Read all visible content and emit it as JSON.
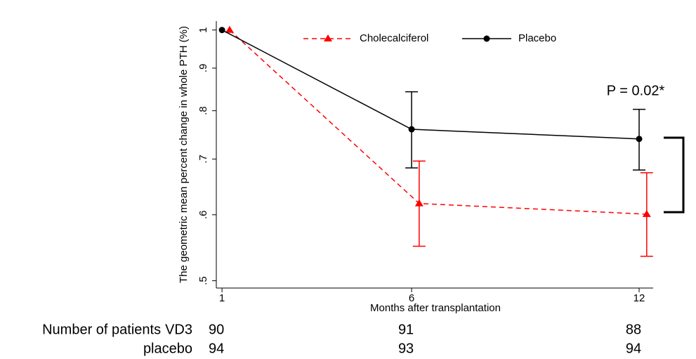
{
  "chart_data": {
    "type": "line",
    "y_label": "The geometric mean percent change in whole PTH (%)",
    "x_label": "Months after transplantation",
    "log_y": true,
    "xlim": [
      0.85,
      12.37
    ],
    "xticks": [
      1,
      6,
      12
    ],
    "ylim": [
      0.49,
      1.025
    ],
    "yticks": [
      {
        "value": 0.5,
        "label": ".5"
      },
      {
        "value": 0.6,
        "label": ".6"
      },
      {
        "value": 0.7,
        "label": ".7"
      },
      {
        "value": 0.8,
        "label": ".8"
      },
      {
        "value": 0.9,
        "label": ".9"
      },
      1
    ],
    "legend": "top",
    "series": [
      {
        "name": "Cholecalciferol",
        "color": "#ff0000",
        "marker": "triangle",
        "dashed": true,
        "x": [
          1.2,
          6.2,
          12.2
        ],
        "values": [
          1,
          0.619,
          0.601
        ],
        "lower": [
          null,
          0.55,
          0.535
        ],
        "upper": [
          null,
          0.696,
          0.674
        ]
      },
      {
        "name": "Placebo",
        "color": "#000000",
        "marker": "circle",
        "dashed": false,
        "x": [
          1,
          6,
          12
        ],
        "values": [
          1,
          0.76,
          0.74
        ],
        "lower": [
          null,
          0.683,
          0.679
        ],
        "upper": [
          null,
          0.843,
          0.803
        ]
      }
    ],
    "annotation": "P = 0.02*",
    "risk_table": {
      "label": "Number of patients",
      "rows": [
        {
          "name": "VD3",
          "values": [
            "90",
            "91",
            "88"
          ]
        },
        {
          "name": "placebo",
          "values": [
            "94",
            "93",
            "94"
          ]
        }
      ]
    }
  }
}
